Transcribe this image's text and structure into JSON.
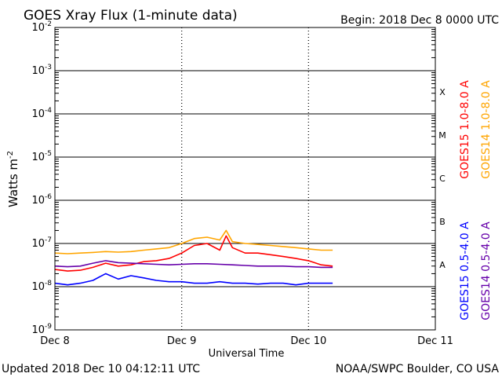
{
  "chart_data": {
    "type": "line",
    "title": "GOES Xray Flux (1-minute data)",
    "begin_label": "Begin:  2018 Dec 8 0000 UTC",
    "xlabel": "Universal Time",
    "ylabel": "Watts m",
    "ylabel_exp": "-2",
    "y_scale": "log",
    "ylim": [
      1e-09,
      0.01
    ],
    "y_tick_exponents": [
      -2,
      -3,
      -4,
      -5,
      -6,
      -7,
      -8,
      -9
    ],
    "x_unit": "days since Dec 8 00:00 UTC",
    "xlim": [
      0,
      3
    ],
    "x_ticks": [
      {
        "x": 0,
        "label": "Dec 8"
      },
      {
        "x": 1,
        "label": "Dec 9"
      },
      {
        "x": 2,
        "label": "Dec 10"
      },
      {
        "x": 3,
        "label": "Dec 11"
      }
    ],
    "flare_classes": [
      {
        "label": "X",
        "y": 0.00032
      },
      {
        "label": "M",
        "y": 3.2e-05
      },
      {
        "label": "C",
        "y": 3.2e-06
      },
      {
        "label": "B",
        "y": 3.2e-07
      },
      {
        "label": "A",
        "y": 3.2e-08
      }
    ],
    "grid": true,
    "legend_position": "right",
    "series": [
      {
        "name": "GOES15 1.0-8.0 A",
        "color": "#ff0000",
        "x": [
          0,
          0.1,
          0.2,
          0.3,
          0.4,
          0.5,
          0.6,
          0.7,
          0.8,
          0.9,
          1.0,
          1.1,
          1.2,
          1.3,
          1.35,
          1.4,
          1.5,
          1.6,
          1.7,
          1.8,
          1.9,
          2.0,
          2.1,
          2.19
        ],
        "y": [
          2.5e-08,
          2.3e-08,
          2.4e-08,
          2.8e-08,
          3.5e-08,
          3e-08,
          3.2e-08,
          3.8e-08,
          4e-08,
          4.5e-08,
          6e-08,
          9e-08,
          1e-07,
          7e-08,
          1.5e-07,
          8e-08,
          6e-08,
          6e-08,
          5.5e-08,
          5e-08,
          4.5e-08,
          4e-08,
          3.2e-08,
          3e-08
        ]
      },
      {
        "name": "GOES14 1.0-8.0 A",
        "color": "#ffa500",
        "x": [
          0,
          0.1,
          0.2,
          0.3,
          0.4,
          0.5,
          0.6,
          0.7,
          0.8,
          0.9,
          1.0,
          1.1,
          1.2,
          1.3,
          1.35,
          1.4,
          1.5,
          1.6,
          1.7,
          1.8,
          1.9,
          2.0,
          2.1,
          2.19
        ],
        "y": [
          6e-08,
          5.8e-08,
          6e-08,
          6.2e-08,
          6.5e-08,
          6.3e-08,
          6.5e-08,
          7e-08,
          7.5e-08,
          8e-08,
          1e-07,
          1.3e-07,
          1.4e-07,
          1.2e-07,
          2e-07,
          1.1e-07,
          1e-07,
          9.5e-08,
          9e-08,
          8.5e-08,
          8e-08,
          7.5e-08,
          7e-08,
          7e-08
        ]
      },
      {
        "name": "GOES15 0.5-4.0 A",
        "color": "#0000ff",
        "x": [
          0,
          0.1,
          0.2,
          0.3,
          0.4,
          0.5,
          0.6,
          0.7,
          0.8,
          0.9,
          1.0,
          1.1,
          1.2,
          1.3,
          1.4,
          1.5,
          1.6,
          1.7,
          1.8,
          1.9,
          2.0,
          2.1,
          2.19
        ],
        "y": [
          1.2e-08,
          1.1e-08,
          1.2e-08,
          1.4e-08,
          2e-08,
          1.5e-08,
          1.8e-08,
          1.6e-08,
          1.4e-08,
          1.3e-08,
          1.3e-08,
          1.2e-08,
          1.2e-08,
          1.3e-08,
          1.2e-08,
          1.2e-08,
          1.15e-08,
          1.2e-08,
          1.2e-08,
          1.1e-08,
          1.2e-08,
          1.2e-08,
          1.2e-08
        ]
      },
      {
        "name": "GOES14 0.5-4.0 A",
        "color": "#6600aa",
        "x": [
          0,
          0.1,
          0.2,
          0.3,
          0.4,
          0.5,
          0.6,
          0.7,
          0.8,
          0.9,
          1.0,
          1.1,
          1.2,
          1.3,
          1.4,
          1.5,
          1.6,
          1.7,
          1.8,
          1.9,
          2.0,
          2.1,
          2.19
        ],
        "y": [
          3e-08,
          2.9e-08,
          3e-08,
          3.5e-08,
          4e-08,
          3.6e-08,
          3.5e-08,
          3.4e-08,
          3.3e-08,
          3.2e-08,
          3.3e-08,
          3.4e-08,
          3.4e-08,
          3.3e-08,
          3.2e-08,
          3.1e-08,
          3e-08,
          3e-08,
          3e-08,
          2.9e-08,
          2.9e-08,
          2.8e-08,
          2.8e-08
        ]
      }
    ]
  },
  "footer": {
    "updated": "Updated 2018 Dec 10 04:12:11 UTC",
    "source": "NOAA/SWPC Boulder, CO USA"
  }
}
